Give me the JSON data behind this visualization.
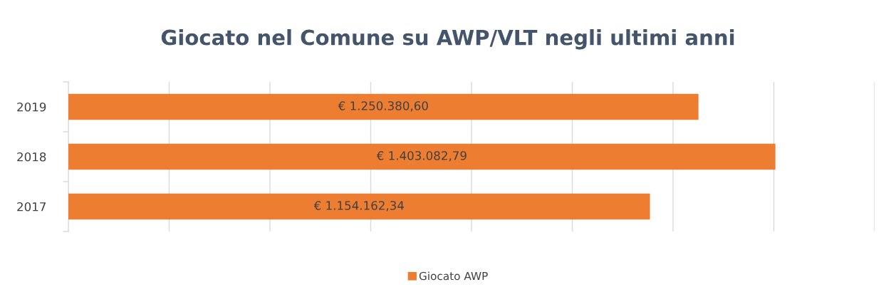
{
  "chart_data": {
    "type": "bar",
    "orientation": "horizontal",
    "title": "Giocato nel Comune su AWP/VLT negli ultimi anni",
    "categories": [
      "2019",
      "2018",
      "2017"
    ],
    "series": [
      {
        "name": "Giocato AWP",
        "color": "#ed7d31",
        "values": [
          1250380.6,
          1403082.79,
          1154162.34
        ],
        "value_labels": [
          "€ 1.250.380,60",
          "€ 1.403.082,79",
          "€ 1.154.162,34"
        ]
      }
    ],
    "xlim": [
      0,
      1600000
    ],
    "xticks": [
      {
        "value": 0,
        "label": null
      },
      {
        "value": 200000,
        "label": null
      },
      {
        "value": 400000,
        "label": null
      },
      {
        "value": 600000,
        "label": null
      },
      {
        "value": 800000,
        "label": null
      },
      {
        "value": 1000000,
        "label": null
      },
      {
        "value": 1200000,
        "label": null
      },
      {
        "value": 1400000,
        "label": null
      },
      {
        "value": 1600000,
        "label": null
      }
    ],
    "tick_labels": "y",
    "grid": "x",
    "legend": "bottom"
  }
}
